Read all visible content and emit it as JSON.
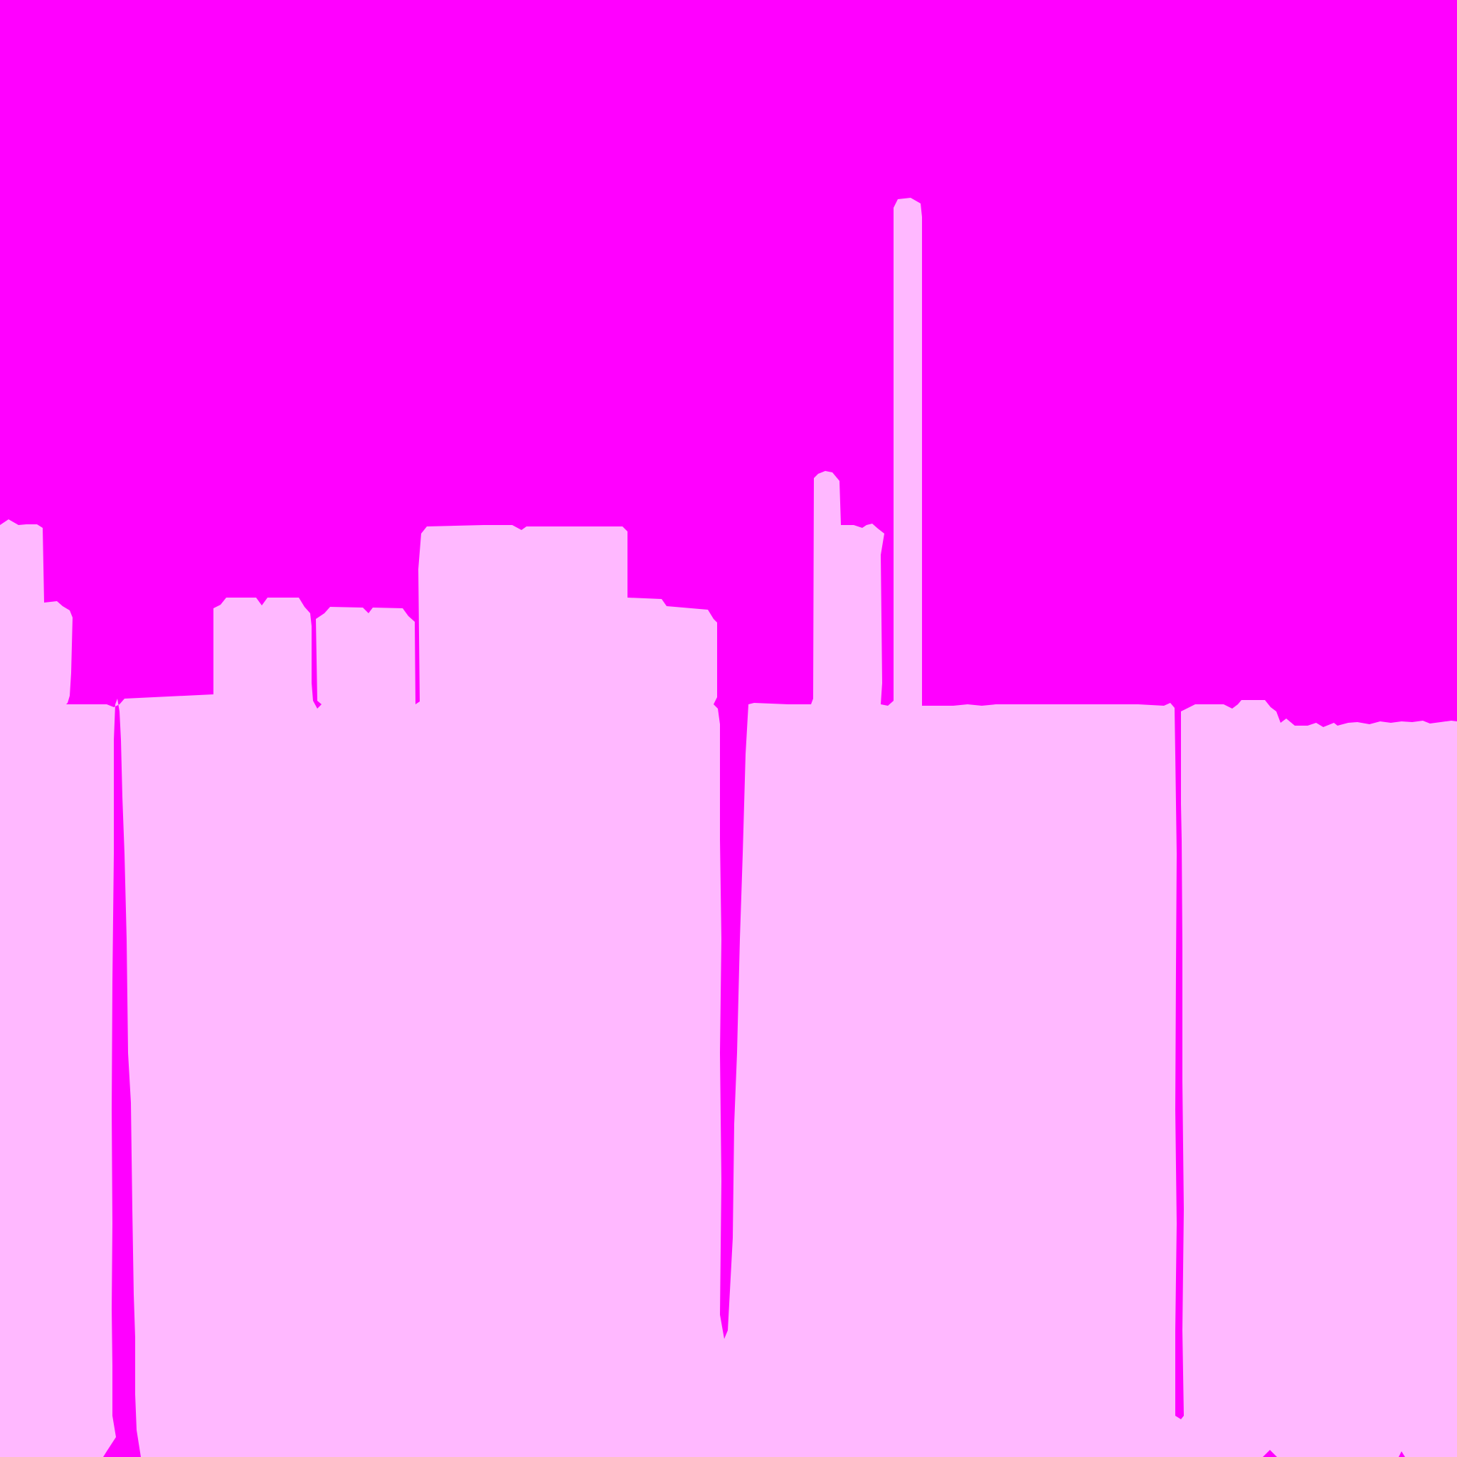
{
  "colors": {
    "sky": "#ff00ff",
    "buildings": "#ffb8ff"
  }
}
